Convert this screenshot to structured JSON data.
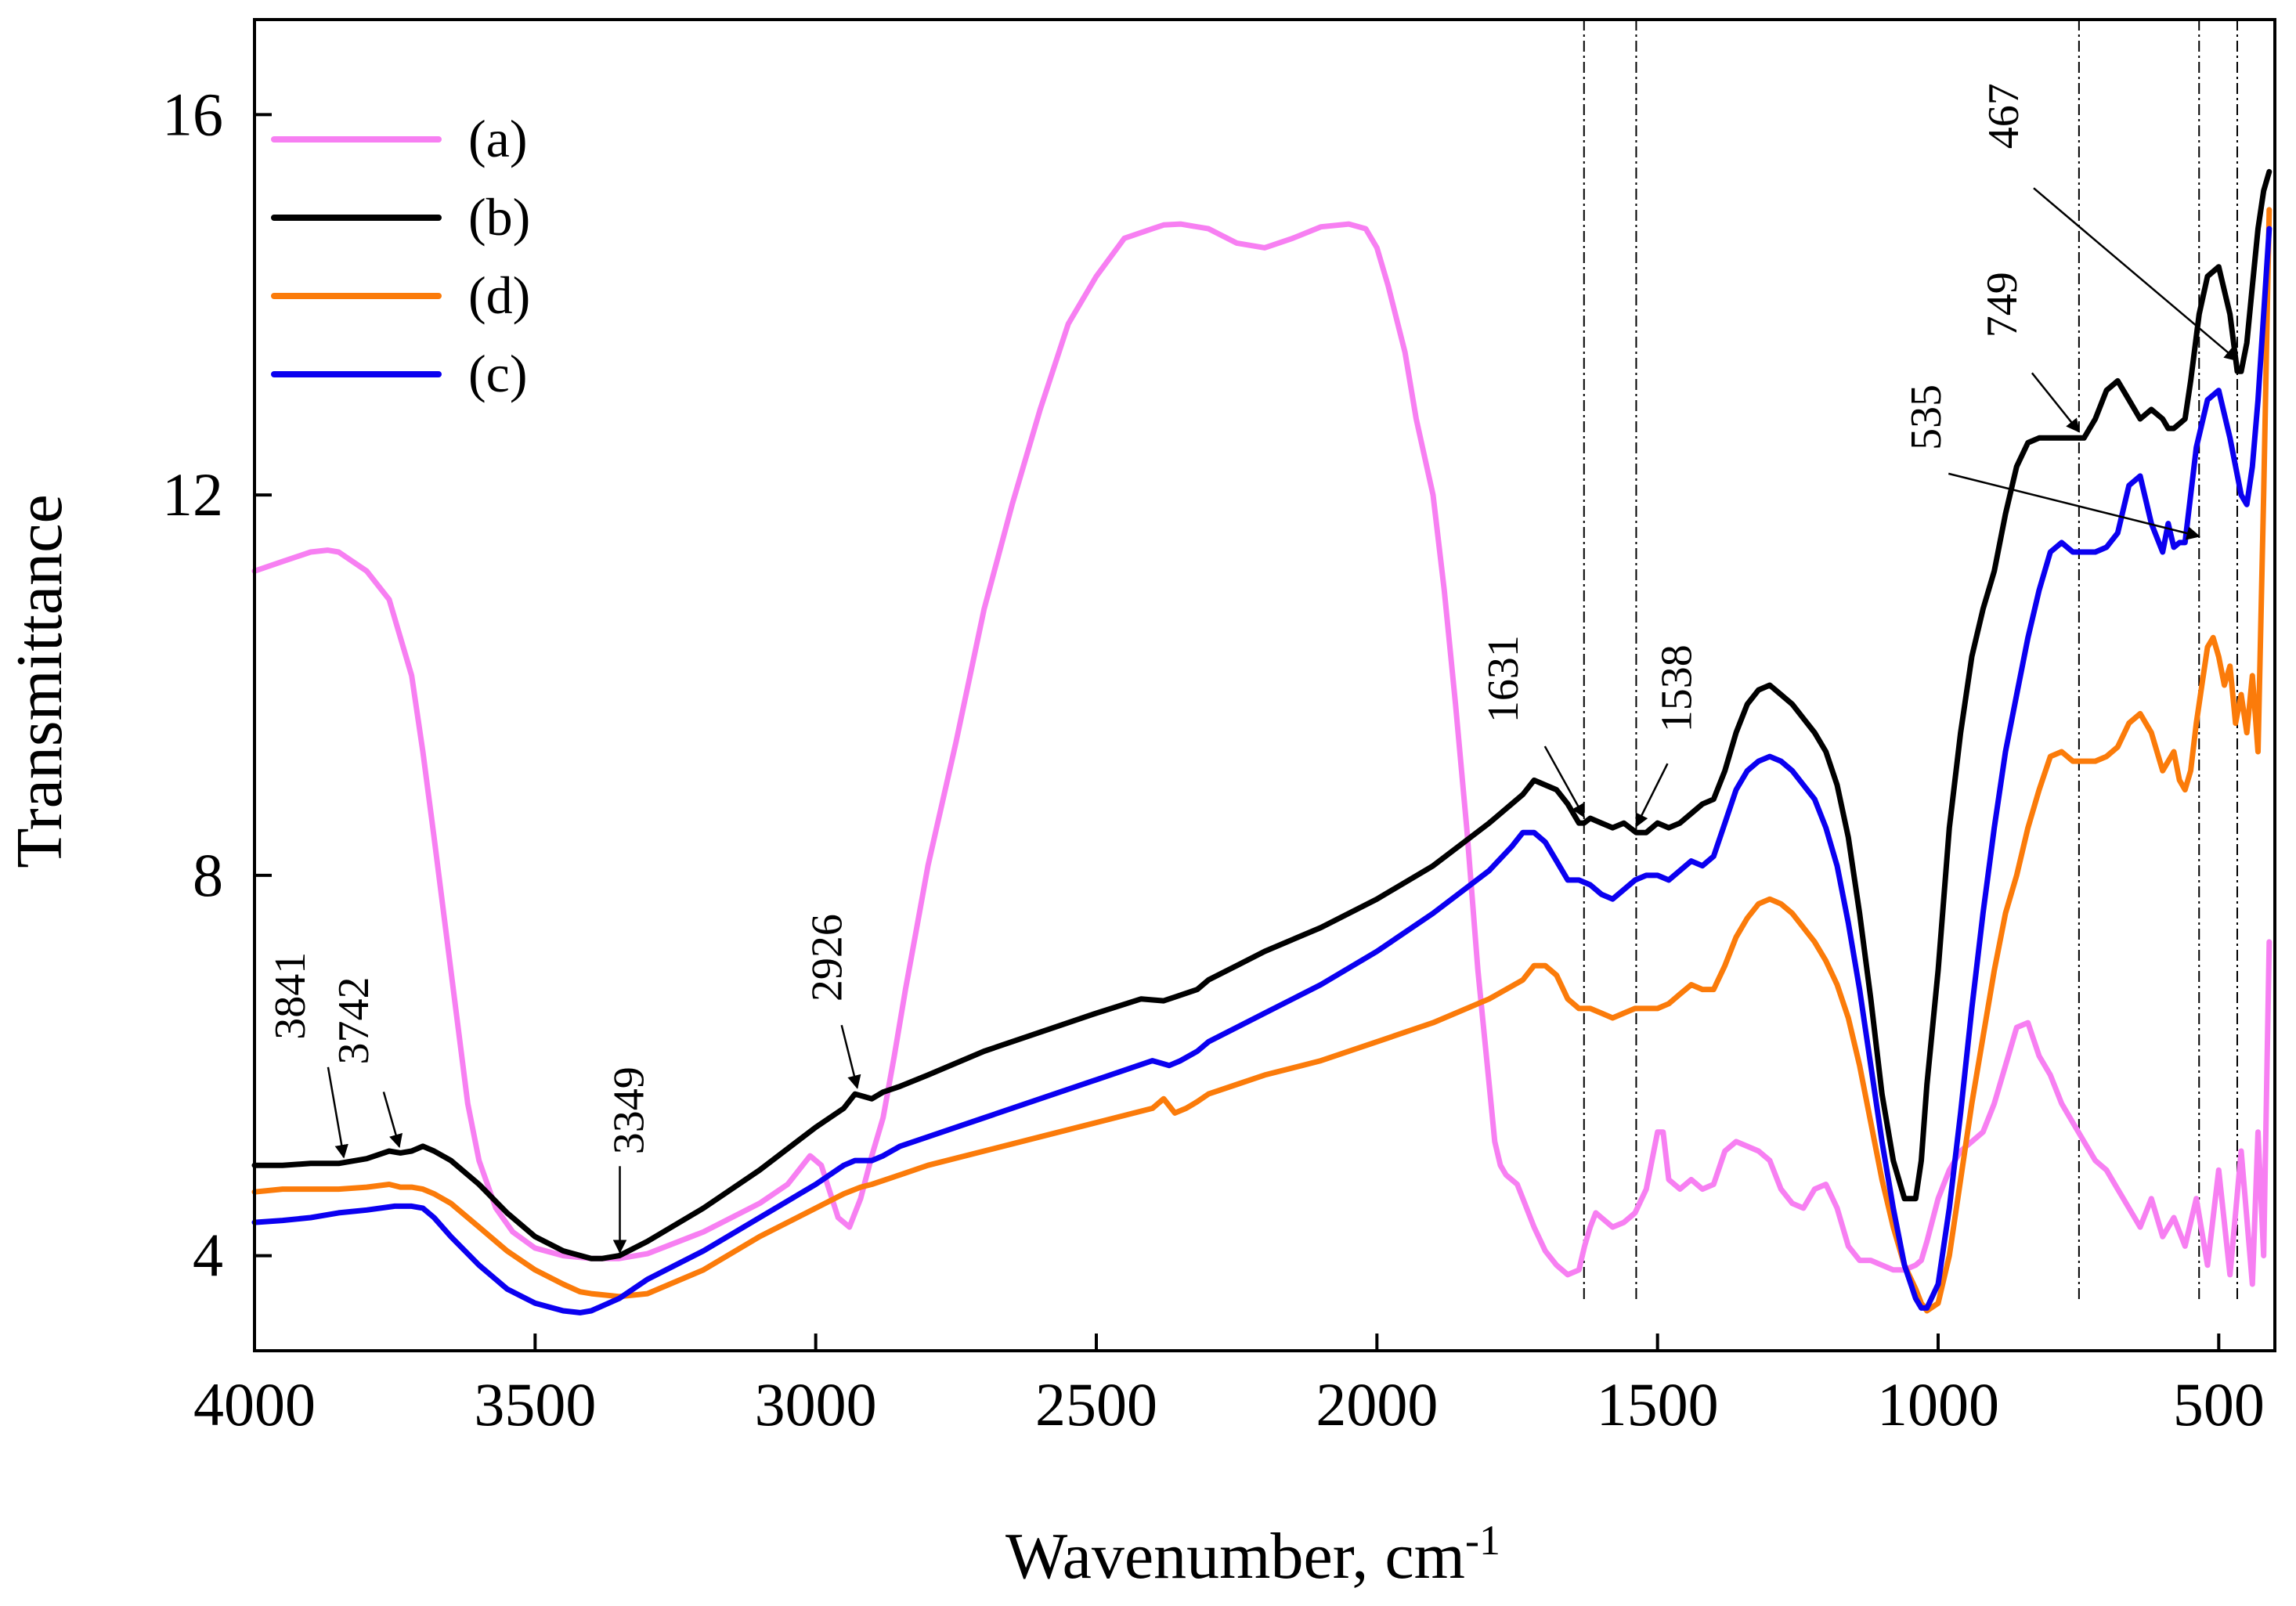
{
  "chart_data": {
    "type": "line",
    "title": "",
    "xlabel": "Wavenumber, cm",
    "xlabel_superscript": "-1",
    "ylabel": "Transmittance",
    "xlim": [
      4000,
      400
    ],
    "ylim": [
      3,
      17
    ],
    "xticks": [
      4000,
      3500,
      3000,
      2500,
      2000,
      1500,
      1000,
      500
    ],
    "xtick_labels": [
      "4000",
      "3500",
      "3000",
      "2500",
      "2000",
      "1500",
      "1000",
      "500"
    ],
    "yticks": [
      4,
      8,
      12,
      16
    ],
    "ytick_labels": [
      "4",
      "8",
      "12",
      "16"
    ],
    "legend_position": "top-left",
    "series": [
      {
        "key": "a",
        "name": "(a)",
        "color": "#f77ff2",
        "x": [
          4000,
          3950,
          3900,
          3870,
          3850,
          3800,
          3760,
          3720,
          3700,
          3680,
          3650,
          3620,
          3600,
          3570,
          3540,
          3500,
          3450,
          3400,
          3350,
          3300,
          3200,
          3100,
          3050,
          3010,
          2990,
          2960,
          2940,
          2920,
          2900,
          2880,
          2860,
          2840,
          2820,
          2800,
          2750,
          2700,
          2650,
          2600,
          2550,
          2500,
          2450,
          2400,
          2380,
          2350,
          2300,
          2250,
          2200,
          2150,
          2100,
          2050,
          2020,
          2000,
          1980,
          1950,
          1930,
          1900,
          1880,
          1860,
          1840,
          1820,
          1800,
          1790,
          1780,
          1770,
          1760,
          1750,
          1740,
          1720,
          1700,
          1680,
          1660,
          1640,
          1630,
          1620,
          1610,
          1600,
          1580,
          1560,
          1540,
          1520,
          1500,
          1490,
          1480,
          1460,
          1440,
          1420,
          1400,
          1380,
          1360,
          1340,
          1320,
          1300,
          1280,
          1260,
          1240,
          1220,
          1200,
          1180,
          1160,
          1140,
          1120,
          1100,
          1080,
          1060,
          1040,
          1030,
          1020,
          1000,
          980,
          960,
          940,
          920,
          900,
          880,
          860,
          840,
          820,
          800,
          780,
          760,
          740,
          720,
          700,
          680,
          660,
          640,
          620,
          600,
          580,
          560,
          540,
          520,
          500,
          480,
          460,
          440,
          430,
          420,
          410
        ],
        "y": [
          11.2,
          11.3,
          11.4,
          11.42,
          11.4,
          11.2,
          10.9,
          10.1,
          9.3,
          8.4,
          7.0,
          5.6,
          5.0,
          4.5,
          4.25,
          4.08,
          4.0,
          3.97,
          3.97,
          4.02,
          4.25,
          4.55,
          4.75,
          5.05,
          4.95,
          4.4,
          4.3,
          4.6,
          5.05,
          5.45,
          6.1,
          6.8,
          7.45,
          8.1,
          9.4,
          10.8,
          11.9,
          12.9,
          13.8,
          14.3,
          14.7,
          14.8,
          14.84,
          14.85,
          14.8,
          14.65,
          14.6,
          14.7,
          14.82,
          14.85,
          14.8,
          14.6,
          14.2,
          13.5,
          12.8,
          12.0,
          11.0,
          9.8,
          8.5,
          7.0,
          5.8,
          5.2,
          4.95,
          4.85,
          4.8,
          4.75,
          4.6,
          4.3,
          4.05,
          3.9,
          3.8,
          3.85,
          4.1,
          4.3,
          4.45,
          4.4,
          4.3,
          4.35,
          4.45,
          4.7,
          5.3,
          5.3,
          4.8,
          4.7,
          4.8,
          4.7,
          4.75,
          5.1,
          5.2,
          5.15,
          5.1,
          5.0,
          4.7,
          4.55,
          4.5,
          4.7,
          4.75,
          4.5,
          4.1,
          3.95,
          3.95,
          3.9,
          3.85,
          3.85,
          3.9,
          3.95,
          4.15,
          4.6,
          4.9,
          5.1,
          5.2,
          5.3,
          5.6,
          6.0,
          6.4,
          6.45,
          6.1,
          5.9,
          5.6,
          5.4,
          5.2,
          5.0,
          4.9,
          4.7,
          4.5,
          4.3,
          4.6,
          4.2,
          4.4,
          4.1,
          4.6,
          3.9,
          4.9,
          3.8,
          5.1,
          3.7,
          5.3,
          4.0,
          7.3
        ]
      },
      {
        "key": "b",
        "name": "(b)",
        "color": "#000000",
        "x": [
          4000,
          3950,
          3900,
          3850,
          3800,
          3760,
          3740,
          3720,
          3700,
          3680,
          3650,
          3600,
          3550,
          3500,
          3450,
          3400,
          3380,
          3350,
          3300,
          3200,
          3100,
          3000,
          2950,
          2930,
          2900,
          2880,
          2850,
          2800,
          2700,
          2600,
          2500,
          2420,
          2380,
          2360,
          2320,
          2300,
          2250,
          2200,
          2100,
          2000,
          1900,
          1800,
          1760,
          1740,
          1720,
          1700,
          1680,
          1660,
          1640,
          1631,
          1620,
          1600,
          1580,
          1560,
          1538,
          1520,
          1500,
          1480,
          1460,
          1440,
          1420,
          1400,
          1380,
          1360,
          1340,
          1320,
          1300,
          1280,
          1260,
          1240,
          1220,
          1200,
          1180,
          1160,
          1140,
          1120,
          1100,
          1080,
          1060,
          1040,
          1030,
          1020,
          1000,
          980,
          960,
          940,
          920,
          900,
          880,
          860,
          840,
          820,
          800,
          780,
          760,
          749,
          740,
          720,
          700,
          680,
          660,
          640,
          620,
          600,
          590,
          580,
          570,
          560,
          550,
          535,
          520,
          500,
          480,
          467,
          460,
          450,
          440,
          430,
          420,
          410
        ],
        "y": [
          4.95,
          4.95,
          4.97,
          4.97,
          5.02,
          5.1,
          5.08,
          5.1,
          5.15,
          5.1,
          5.0,
          4.75,
          4.45,
          4.2,
          4.05,
          3.97,
          3.97,
          4.0,
          4.15,
          4.5,
          4.9,
          5.35,
          5.55,
          5.7,
          5.65,
          5.72,
          5.78,
          5.9,
          6.15,
          6.35,
          6.55,
          6.7,
          6.68,
          6.72,
          6.8,
          6.9,
          7.05,
          7.2,
          7.45,
          7.75,
          8.1,
          8.55,
          8.75,
          8.85,
          9.0,
          8.95,
          8.9,
          8.75,
          8.55,
          8.55,
          8.6,
          8.55,
          8.5,
          8.55,
          8.45,
          8.45,
          8.55,
          8.5,
          8.55,
          8.65,
          8.75,
          8.8,
          9.1,
          9.5,
          9.8,
          9.95,
          10.0,
          9.9,
          9.8,
          9.65,
          9.5,
          9.3,
          8.95,
          8.4,
          7.6,
          6.7,
          5.7,
          5.0,
          4.6,
          4.6,
          5.0,
          5.8,
          7.0,
          8.5,
          9.5,
          10.3,
          10.8,
          11.2,
          11.8,
          12.3,
          12.55,
          12.6,
          12.6,
          12.6,
          12.6,
          12.6,
          12.6,
          12.8,
          13.1,
          13.2,
          13.0,
          12.8,
          12.9,
          12.8,
          12.7,
          12.7,
          12.75,
          12.8,
          13.2,
          13.9,
          14.3,
          14.4,
          13.9,
          13.3,
          13.3,
          13.6,
          14.2,
          14.8,
          15.2,
          15.4
        ]
      },
      {
        "key": "d",
        "name": "(d)",
        "color": "#fb7b0a",
        "x": [
          4000,
          3950,
          3900,
          3850,
          3800,
          3760,
          3740,
          3720,
          3700,
          3680,
          3650,
          3600,
          3550,
          3500,
          3450,
          3420,
          3400,
          3350,
          3300,
          3200,
          3100,
          3000,
          2950,
          2920,
          2900,
          2850,
          2800,
          2700,
          2600,
          2500,
          2400,
          2380,
          2360,
          2340,
          2320,
          2300,
          2250,
          2200,
          2100,
          2000,
          1900,
          1800,
          1740,
          1720,
          1700,
          1680,
          1660,
          1640,
          1620,
          1600,
          1580,
          1560,
          1540,
          1520,
          1500,
          1480,
          1460,
          1440,
          1420,
          1400,
          1380,
          1360,
          1340,
          1320,
          1300,
          1280,
          1260,
          1240,
          1220,
          1200,
          1180,
          1160,
          1140,
          1120,
          1100,
          1080,
          1060,
          1040,
          1030,
          1020,
          1000,
          980,
          960,
          940,
          920,
          900,
          880,
          860,
          840,
          820,
          800,
          780,
          760,
          740,
          720,
          700,
          680,
          660,
          640,
          620,
          600,
          580,
          570,
          560,
          550,
          540,
          530,
          520,
          510,
          500,
          490,
          480,
          470,
          460,
          450,
          440,
          430,
          420,
          410
        ],
        "y": [
          4.67,
          4.7,
          4.7,
          4.7,
          4.72,
          4.75,
          4.72,
          4.72,
          4.7,
          4.65,
          4.55,
          4.3,
          4.05,
          3.85,
          3.7,
          3.62,
          3.6,
          3.57,
          3.6,
          3.85,
          4.2,
          4.5,
          4.65,
          4.72,
          4.75,
          4.85,
          4.95,
          5.1,
          5.25,
          5.4,
          5.55,
          5.65,
          5.5,
          5.55,
          5.62,
          5.7,
          5.8,
          5.9,
          6.05,
          6.25,
          6.45,
          6.7,
          6.9,
          7.05,
          7.05,
          6.95,
          6.7,
          6.6,
          6.6,
          6.55,
          6.5,
          6.55,
          6.6,
          6.6,
          6.6,
          6.65,
          6.75,
          6.85,
          6.8,
          6.8,
          7.05,
          7.35,
          7.55,
          7.7,
          7.75,
          7.7,
          7.6,
          7.45,
          7.3,
          7.1,
          6.85,
          6.5,
          6.0,
          5.4,
          4.8,
          4.3,
          3.9,
          3.65,
          3.5,
          3.42,
          3.5,
          4.0,
          4.8,
          5.6,
          6.3,
          7.0,
          7.6,
          8.0,
          8.5,
          8.9,
          9.25,
          9.3,
          9.2,
          9.2,
          9.2,
          9.25,
          9.35,
          9.6,
          9.7,
          9.5,
          9.1,
          9.3,
          9.0,
          8.9,
          9.1,
          9.6,
          10.0,
          10.4,
          10.5,
          10.3,
          10.0,
          10.2,
          9.6,
          9.9,
          9.5,
          10.1,
          9.3,
          12.0,
          15.0
        ]
      },
      {
        "key": "c",
        "name": "(c)",
        "color": "#0b00f0",
        "x": [
          4000,
          3950,
          3900,
          3850,
          3800,
          3750,
          3720,
          3700,
          3680,
          3650,
          3600,
          3550,
          3500,
          3450,
          3420,
          3400,
          3350,
          3300,
          3200,
          3100,
          3000,
          2950,
          2930,
          2900,
          2880,
          2850,
          2800,
          2700,
          2600,
          2500,
          2400,
          2370,
          2350,
          2320,
          2300,
          2250,
          2200,
          2100,
          2000,
          1900,
          1800,
          1760,
          1740,
          1720,
          1700,
          1680,
          1660,
          1640,
          1620,
          1600,
          1580,
          1560,
          1540,
          1520,
          1500,
          1480,
          1460,
          1440,
          1420,
          1400,
          1380,
          1360,
          1340,
          1320,
          1300,
          1280,
          1260,
          1240,
          1220,
          1200,
          1180,
          1160,
          1140,
          1120,
          1100,
          1080,
          1060,
          1040,
          1030,
          1020,
          1000,
          980,
          960,
          940,
          920,
          900,
          880,
          860,
          840,
          820,
          800,
          780,
          760,
          740,
          720,
          700,
          680,
          660,
          640,
          620,
          600,
          590,
          580,
          570,
          560,
          550,
          540,
          520,
          500,
          480,
          460,
          450,
          440,
          430,
          420,
          410
        ],
        "y": [
          4.35,
          4.37,
          4.4,
          4.45,
          4.48,
          4.52,
          4.52,
          4.5,
          4.4,
          4.2,
          3.9,
          3.65,
          3.5,
          3.42,
          3.4,
          3.42,
          3.55,
          3.75,
          4.05,
          4.4,
          4.75,
          4.95,
          5.0,
          5.0,
          5.05,
          5.15,
          5.25,
          5.45,
          5.65,
          5.85,
          6.05,
          6.0,
          6.05,
          6.15,
          6.25,
          6.4,
          6.55,
          6.85,
          7.2,
          7.6,
          8.05,
          8.3,
          8.45,
          8.45,
          8.35,
          8.15,
          7.95,
          7.95,
          7.9,
          7.8,
          7.75,
          7.85,
          7.95,
          8.0,
          8.0,
          7.95,
          8.05,
          8.15,
          8.1,
          8.2,
          8.55,
          8.9,
          9.1,
          9.2,
          9.25,
          9.2,
          9.1,
          8.95,
          8.8,
          8.5,
          8.1,
          7.5,
          6.8,
          6.0,
          5.2,
          4.5,
          3.9,
          3.55,
          3.45,
          3.45,
          3.7,
          4.5,
          5.5,
          6.6,
          7.6,
          8.5,
          9.3,
          9.9,
          10.5,
          11.0,
          11.4,
          11.5,
          11.4,
          11.4,
          11.4,
          11.45,
          11.6,
          12.1,
          12.2,
          11.7,
          11.4,
          11.7,
          11.45,
          11.5,
          11.5,
          12.0,
          12.5,
          13.0,
          13.1,
          12.6,
          12.0,
          11.9,
          12.3,
          13.0,
          13.9,
          14.8
        ]
      }
    ],
    "reference_lines_x": [
      1631,
      1538,
      749,
      535,
      467
    ],
    "annotations": [
      {
        "label": "3841",
        "x": 3841,
        "y": 4.97,
        "series": "b"
      },
      {
        "label": "3742",
        "x": 3742,
        "y": 5.08,
        "series": "b"
      },
      {
        "label": "3349",
        "x": 3349,
        "y": 3.97,
        "series": "b"
      },
      {
        "label": "2926",
        "x": 2926,
        "y": 5.7,
        "series": "b"
      },
      {
        "label": "1631",
        "x": 1631,
        "y": 8.55,
        "series": "b"
      },
      {
        "label": "1538",
        "x": 1538,
        "y": 8.45,
        "series": "b"
      },
      {
        "label": "749",
        "x": 749,
        "y": 12.6,
        "series": "b"
      },
      {
        "label": "535",
        "x": 535,
        "y": 11.5,
        "series": "c"
      },
      {
        "label": "467",
        "x": 467,
        "y": 13.35,
        "series": "b"
      }
    ]
  }
}
